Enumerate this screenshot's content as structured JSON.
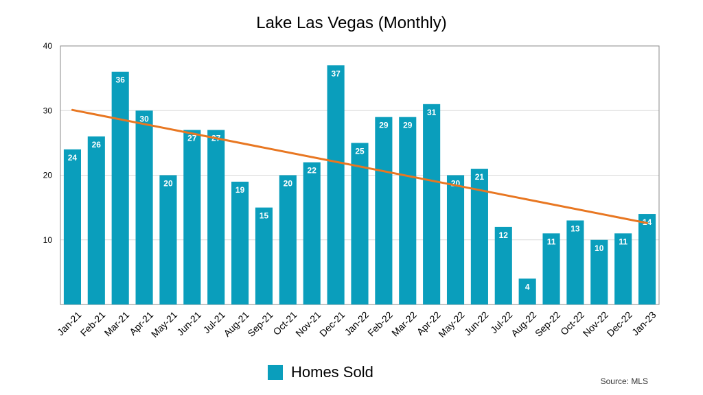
{
  "chart_data": {
    "type": "bar",
    "title": "Lake Las Vegas (Monthly)",
    "categories": [
      "Jan-21",
      "Feb-21",
      "Mar-21",
      "Apr-21",
      "May-21",
      "Jun-21",
      "Jul-21",
      "Aug-21",
      "Sep-21",
      "Oct-21",
      "Nov-21",
      "Dec-21",
      "Jan-22",
      "Feb-22",
      "Mar-22",
      "Apr-22",
      "May-22",
      "Jun-22",
      "Jul-22",
      "Aug-22",
      "Sep-22",
      "Oct-22",
      "Nov-22",
      "Dec-22",
      "Jan-23"
    ],
    "series": [
      {
        "name": "Homes Sold",
        "values": [
          24,
          26,
          36,
          30,
          20,
          27,
          27,
          19,
          15,
          20,
          22,
          37,
          25,
          29,
          29,
          31,
          20,
          21,
          12,
          4,
          11,
          13,
          10,
          11,
          14
        ]
      }
    ],
    "trendline": {
      "start": 30.1,
      "end": 12.6
    },
    "ylim": [
      0,
      40
    ],
    "yticks": [
      10,
      20,
      30,
      40
    ],
    "xlabel": "",
    "ylabel": "",
    "legend_position": "bottom",
    "grid": true
  },
  "colors": {
    "bar": "#0a9ebc",
    "trend": "#e87722",
    "grid": "#d9d9d9"
  },
  "source": "Source: MLS"
}
